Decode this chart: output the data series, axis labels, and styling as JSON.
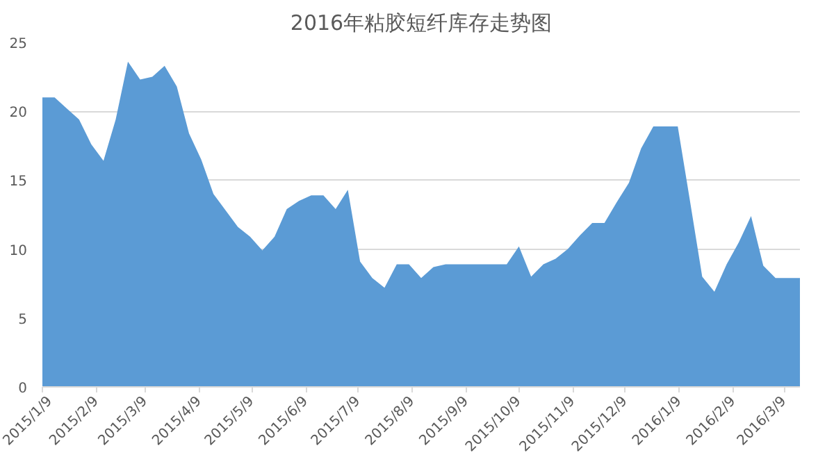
{
  "chart_data": {
    "type": "area",
    "title": "2016年粘胶短纤库存走势图",
    "x": [
      "2015-01-09",
      "2015-01-16",
      "2015-01-23",
      "2015-01-30",
      "2015-02-06",
      "2015-02-13",
      "2015-02-20",
      "2015-02-27",
      "2015-03-06",
      "2015-03-13",
      "2015-03-20",
      "2015-03-27",
      "2015-04-03",
      "2015-04-10",
      "2015-04-17",
      "2015-04-24",
      "2015-05-01",
      "2015-05-08",
      "2015-05-15",
      "2015-05-22",
      "2015-05-29",
      "2015-06-05",
      "2015-06-12",
      "2015-06-19",
      "2015-06-26",
      "2015-07-03",
      "2015-07-10",
      "2015-07-17",
      "2015-07-24",
      "2015-07-31",
      "2015-08-07",
      "2015-08-14",
      "2015-08-21",
      "2015-08-28",
      "2015-09-04",
      "2015-09-11",
      "2015-09-18",
      "2015-09-25",
      "2015-10-02",
      "2015-10-09",
      "2015-10-16",
      "2015-10-23",
      "2015-10-30",
      "2015-11-06",
      "2015-11-13",
      "2015-11-20",
      "2015-11-27",
      "2015-12-04",
      "2015-12-11",
      "2015-12-18",
      "2015-12-25",
      "2016-01-01",
      "2016-01-08",
      "2016-01-15",
      "2016-01-22",
      "2016-01-29",
      "2016-02-05",
      "2016-02-12",
      "2016-02-19",
      "2016-02-26",
      "2016-03-04",
      "2016-03-11",
      "2016-03-18"
    ],
    "series": [
      {
        "color": "#5b9bd5",
        "values": [
          21,
          21,
          20.2,
          19.4,
          17.6,
          16.4,
          19.4,
          23.6,
          22.3,
          22.5,
          23.3,
          21.8,
          18.4,
          16.5,
          14,
          12.8,
          11.6,
          10.9,
          9.9,
          10.9,
          12.9,
          13.5,
          13.9,
          13.9,
          12.9,
          14.3,
          9.1,
          7.9,
          7.2,
          8.9,
          8.9,
          7.9,
          8.7,
          8.9,
          8.9,
          8.9,
          8.9,
          8.9,
          8.9,
          10.2,
          8,
          8.9,
          9.3,
          10,
          11,
          11.9,
          11.9,
          13.4,
          14.8,
          17.3,
          18.9,
          18.9,
          18.9,
          13.5,
          8,
          6.9,
          8.9,
          10.5,
          12.4,
          8.8,
          7.9,
          7.9,
          7.9
        ]
      }
    ],
    "xlim": [
      "2015-01-09",
      "2016-03-18"
    ],
    "xticks": [
      {
        "value": "2015-01-09",
        "label": "2015/1/9"
      },
      {
        "value": "2015-02-09",
        "label": "2015/2/9"
      },
      {
        "value": "2015-03-09",
        "label": "2015/3/9"
      },
      {
        "value": "2015-04-09",
        "label": "2015/4/9"
      },
      {
        "value": "2015-05-09",
        "label": "2015/5/9"
      },
      {
        "value": "2015-06-09",
        "label": "2015/6/9"
      },
      {
        "value": "2015-07-09",
        "label": "2015/7/9"
      },
      {
        "value": "2015-08-09",
        "label": "2015/8/9"
      },
      {
        "value": "2015-09-09",
        "label": "2015/9/9"
      },
      {
        "value": "2015-10-09",
        "label": "2015/10/9"
      },
      {
        "value": "2015-11-09",
        "label": "2015/11/9"
      },
      {
        "value": "2015-12-09",
        "label": "2015/12/9"
      },
      {
        "value": "2016-01-09",
        "label": "2016/1/9"
      },
      {
        "value": "2016-02-09",
        "label": "2016/2/9"
      },
      {
        "value": "2016-03-09",
        "label": "2016/3/9"
      }
    ],
    "ylim": [
      0,
      25
    ],
    "yticks": [
      0,
      5,
      10,
      15,
      20,
      25
    ],
    "grid": "y"
  }
}
